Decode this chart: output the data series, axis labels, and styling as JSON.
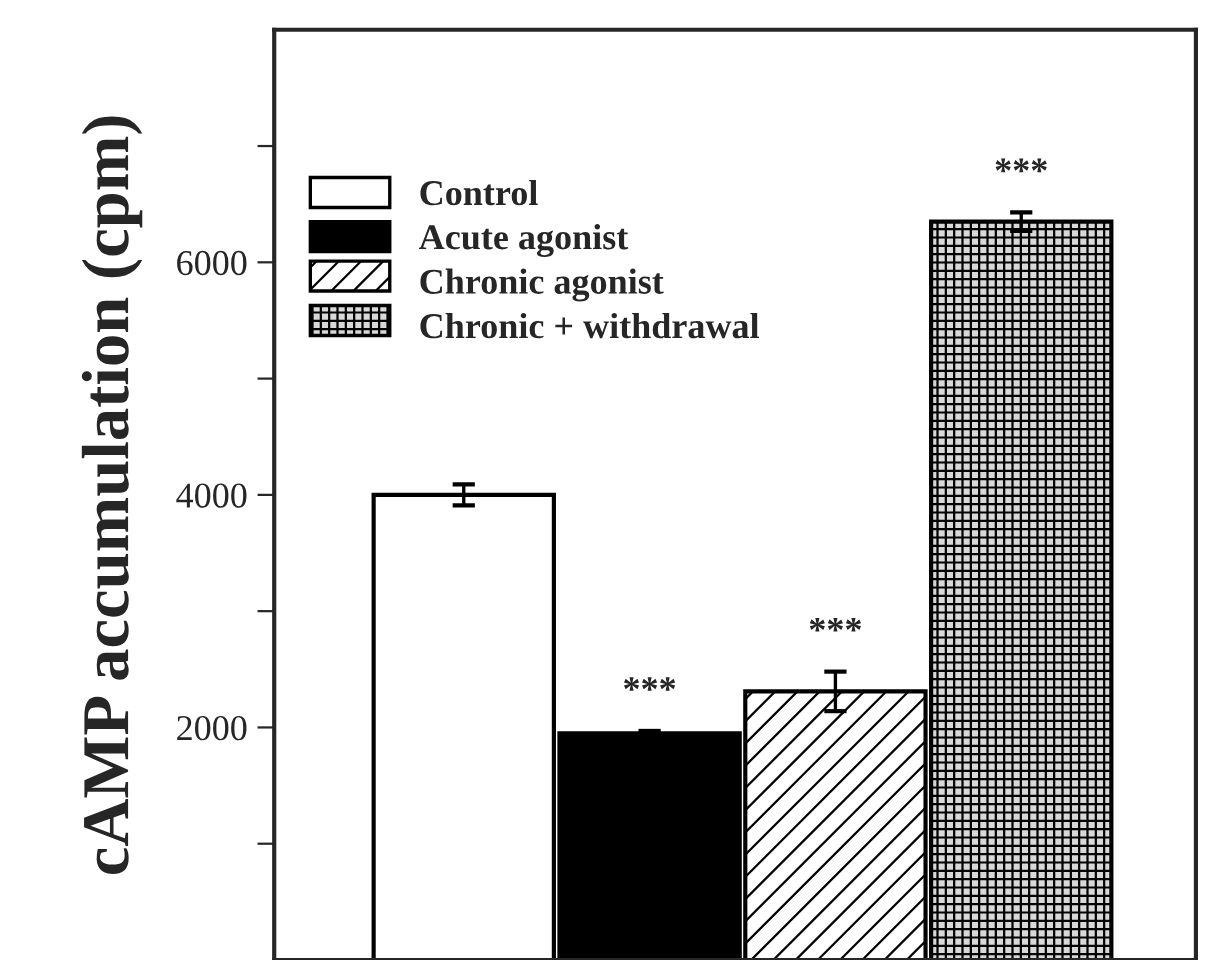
{
  "chart_data": {
    "type": "bar",
    "ylabel": "cAMP accumulation (cpm)",
    "categories": [
      null,
      null,
      null,
      null
    ],
    "series": [
      {
        "name": "Control",
        "color": "#ffffff",
        "values": [
          4000,
          null,
          null,
          null
        ],
        "errors": [
          90,
          null,
          null,
          null
        ],
        "value_labels": [
          null,
          null,
          null,
          null
        ]
      },
      {
        "name": "Acute agonist",
        "color": "#000000",
        "values": [
          null,
          1950,
          null,
          null
        ],
        "errors": [
          null,
          20,
          null,
          null
        ],
        "value_labels": [
          null,
          "***",
          null,
          null
        ]
      },
      {
        "name": "Chronic agonist",
        "color": "#ffffff",
        "values": [
          null,
          null,
          2310,
          null
        ],
        "errors": [
          null,
          null,
          170,
          null
        ],
        "value_labels": [
          null,
          null,
          "***",
          null
        ]
      },
      {
        "name": "Chronic + withdrawal",
        "color": "#d8d8d8",
        "values": [
          null,
          null,
          null,
          6350
        ],
        "errors": [
          null,
          null,
          null,
          80
        ],
        "value_labels": [
          null,
          null,
          null,
          "***"
        ]
      }
    ],
    "ylim": [
      0,
      8000
    ],
    "yticks": [
      {
        "value": 1000,
        "label": null
      },
      2000,
      {
        "value": 3000,
        "label": null
      },
      4000,
      {
        "value": 5000,
        "label": null
      },
      6000,
      {
        "value": 7000,
        "label": null
      }
    ],
    "tick_labels": "y",
    "legend": "top left",
    "grid": false
  }
}
